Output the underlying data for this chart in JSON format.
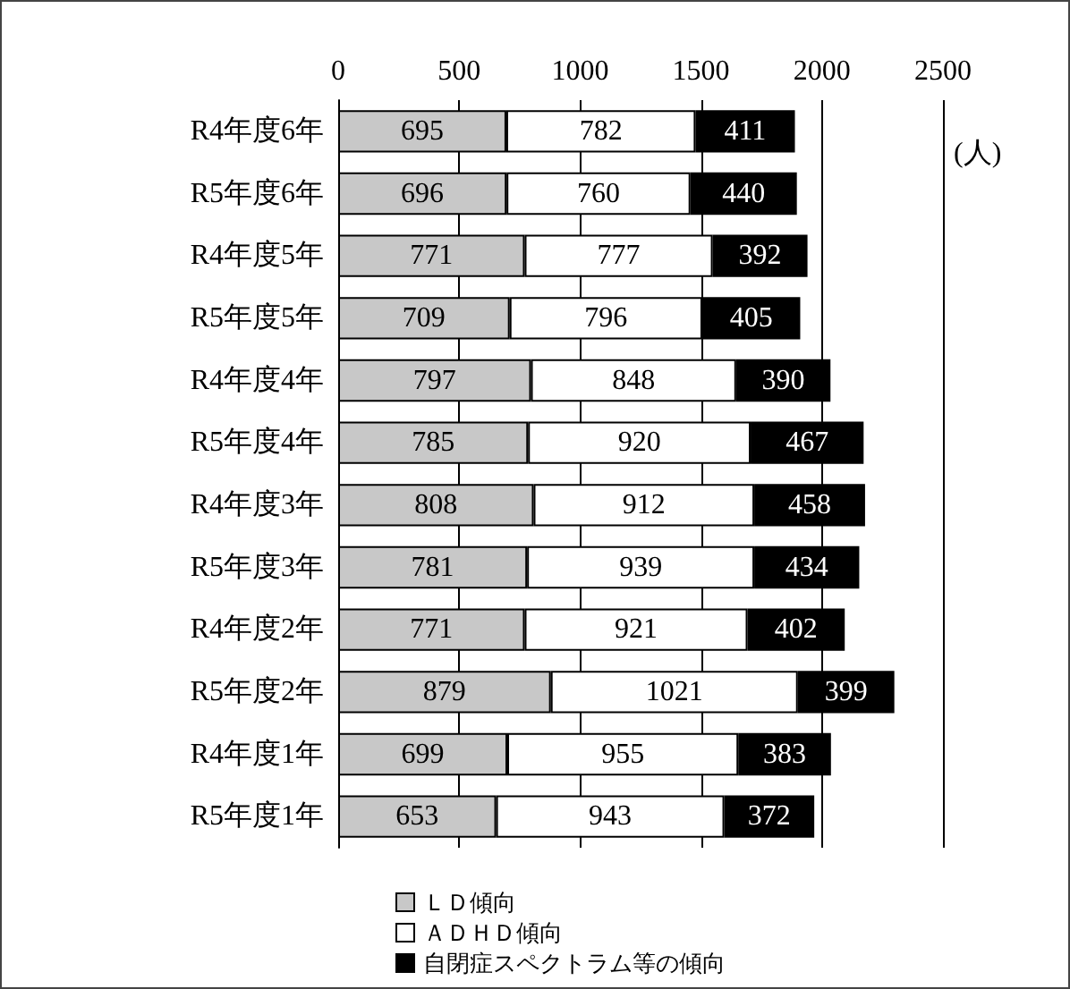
{
  "chart_data": {
    "type": "bar",
    "orientation": "horizontal",
    "stacked": true,
    "xlabel": "(人)",
    "categories": [
      "R4年度6年",
      "R5年度6年",
      "R4年度5年",
      "R5年度5年",
      "R4年度4年",
      "R5年度4年",
      "R4年度3年",
      "R5年度3年",
      "R4年度2年",
      "R5年度2年",
      "R4年度1年",
      "R5年度1年"
    ],
    "series": [
      {
        "name": "ＬＤ傾向",
        "color": "#c8c8c8",
        "values": [
          695,
          696,
          771,
          709,
          797,
          785,
          808,
          781,
          771,
          879,
          699,
          653
        ]
      },
      {
        "name": "ＡＤＨＤ傾向",
        "color": "#ffffff",
        "values": [
          782,
          760,
          777,
          796,
          848,
          920,
          912,
          939,
          921,
          1021,
          955,
          943
        ]
      },
      {
        "name": "自閉症スペクトラム等の傾向",
        "color": "#000000",
        "values": [
          411,
          440,
          392,
          405,
          390,
          467,
          458,
          434,
          402,
          399,
          383,
          372
        ]
      }
    ],
    "xlim": [
      0,
      2500
    ],
    "xticks": [
      0,
      500,
      1000,
      1500,
      2000,
      2500
    ],
    "grid": "x",
    "legend": "bottom",
    "data_labels": true
  }
}
